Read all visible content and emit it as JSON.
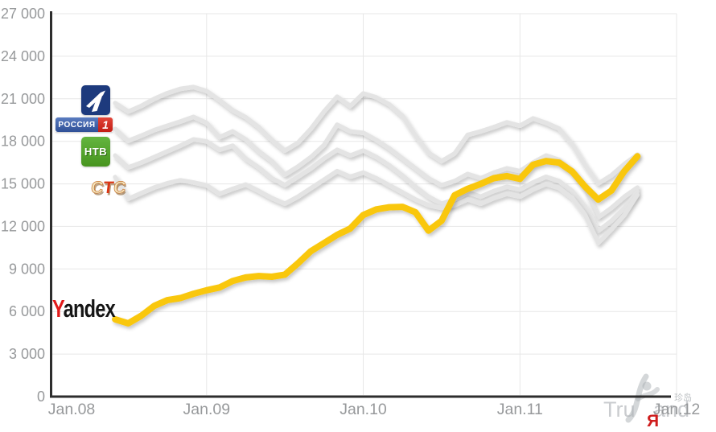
{
  "theme": {
    "background": "#ffffff",
    "grid_color": "#e7e7e7",
    "axis_color": "#2d2d2d",
    "tick_color": "#97999b",
    "tv_line_color": "#e4e4e4",
    "yandex_line_color": "#f9c70a",
    "yandex_red": "#e21b1b",
    "channel_one_blue": "#1d3a7d",
    "rossiya_blue": "#3d5fa6",
    "rossiya_red": "#c9221b",
    "ntv_green": "#4f9f33"
  },
  "legend": {
    "channel_one": {
      "name": "Channel One"
    },
    "rossiya1": {
      "text": "РОССИЯ",
      "digit": "1"
    },
    "ntv": {
      "text": "НТВ"
    },
    "sts": {
      "letters": "СТС"
    },
    "yandex": {
      "first_letter": "Y",
      "rest": "andex"
    }
  },
  "watermark": {
    "part1": "Tru",
    "part2": "and",
    "cjk": "珍岛",
    "red_letter": "Я"
  },
  "chart_data": {
    "type": "line",
    "title": "",
    "grid": true,
    "legend_position": "left-on-plot",
    "x_axis": {
      "unit": "month",
      "ticks": [
        {
          "month": 0,
          "label": "Jan.08"
        },
        {
          "month": 12,
          "label": "Jan.09"
        },
        {
          "month": 24,
          "label": "Jan.10"
        },
        {
          "month": 36,
          "label": "Jan.11"
        },
        {
          "month": 48,
          "label": "Jan.12"
        }
      ]
    },
    "y_axis": {
      "min": 0,
      "max": 27000,
      "ticks": [
        {
          "value": 0,
          "label": "0"
        },
        {
          "value": 3000,
          "label": "3 000"
        },
        {
          "value": 6000,
          "label": "6 000"
        },
        {
          "value": 9000,
          "label": "9 000"
        },
        {
          "value": 12000,
          "label": "12 000"
        },
        {
          "value": 15000,
          "label": "15 000"
        },
        {
          "value": 18000,
          "label": "18 000"
        },
        {
          "value": 21000,
          "label": "21 000"
        },
        {
          "value": 24000,
          "label": "24 000"
        },
        {
          "value": 27000,
          "label": "27 000"
        }
      ]
    },
    "series": [
      {
        "name": "Channel One",
        "color": "#e4e4e4",
        "line_width": 5.5,
        "start_month": 5,
        "values": [
          20700,
          20100,
          20500,
          21000,
          21400,
          21700,
          21830,
          21550,
          20900,
          20200,
          19700,
          19000,
          18100,
          17350,
          17900,
          18900,
          20100,
          21150,
          20480,
          21380,
          21100,
          20600,
          19800,
          18400,
          17200,
          16600,
          17150,
          18450,
          18700,
          19000,
          19340,
          19100,
          19620,
          19300,
          18900,
          17800,
          16300,
          15020,
          15600,
          16400,
          17070
        ]
      },
      {
        "name": "Rossiya 1",
        "color": "#e4e4e4",
        "line_width": 5.5,
        "start_month": 5,
        "values": [
          18880,
          18030,
          18400,
          18800,
          19100,
          19400,
          19730,
          19300,
          18300,
          18700,
          18140,
          17300,
          16610,
          15650,
          16220,
          16900,
          17750,
          19170,
          18700,
          18600,
          18100,
          17500,
          16800,
          16100,
          15400,
          14900,
          15200,
          15700,
          15400,
          15800,
          16100,
          15900,
          16500,
          17000,
          16700,
          15900,
          14700,
          12640,
          13300,
          14100,
          14740
        ]
      },
      {
        "name": "NTV",
        "color": "#e4e4e4",
        "line_width": 5.5,
        "start_month": 5,
        "values": [
          17000,
          16160,
          16500,
          16900,
          17300,
          17700,
          18140,
          18000,
          17400,
          17700,
          16780,
          16160,
          15400,
          14920,
          15500,
          16100,
          16800,
          17400,
          17000,
          17350,
          16900,
          16300,
          15600,
          14800,
          14100,
          13600,
          13900,
          14400,
          14100,
          14500,
          14800,
          14600,
          15100,
          15500,
          15200,
          14500,
          13400,
          11680,
          12400,
          13300,
          14460
        ]
      },
      {
        "name": "STS",
        "color": "#e4e4e4",
        "line_width": 5.5,
        "start_month": 5,
        "values": [
          15480,
          13950,
          14350,
          14750,
          15050,
          15250,
          15100,
          14900,
          14300,
          14650,
          14950,
          14500,
          14000,
          13600,
          14100,
          14700,
          15300,
          15900,
          15500,
          15800,
          15400,
          14900,
          14400,
          13900,
          13500,
          13300,
          13500,
          13900,
          13600,
          14000,
          14300,
          14100,
          14600,
          15000,
          14700,
          14000,
          12800,
          10830,
          11800,
          12800,
          14230
        ]
      },
      {
        "name": "Yandex",
        "color": "#f9c70a",
        "line_width": 8,
        "start_month": 5,
        "values": [
          5450,
          5170,
          5700,
          6400,
          6800,
          6950,
          7250,
          7500,
          7700,
          8150,
          8400,
          8505,
          8450,
          8600,
          9400,
          10260,
          10830,
          11400,
          11850,
          12800,
          13200,
          13350,
          13380,
          13000,
          11700,
          12400,
          14200,
          14650,
          15000,
          15400,
          15550,
          15350,
          16350,
          16610,
          16500,
          15870,
          14800,
          13890,
          14520,
          15900,
          16950
        ]
      }
    ]
  }
}
